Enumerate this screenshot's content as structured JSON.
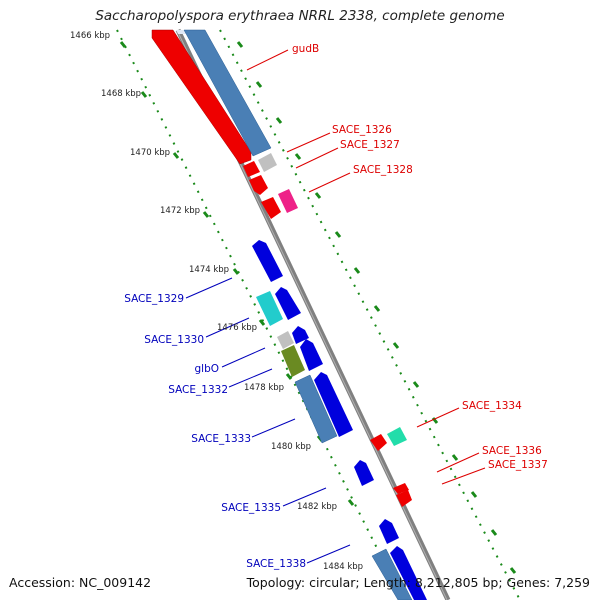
{
  "title": "Saccharopolyspora erythraea NRRL 2338, complete genome",
  "footer": {
    "accession": "Accession: NC_009142",
    "topology": "Topology: circular; Length: 8,212,805 bp; Genes: 7,259"
  },
  "ticks": [
    "1466 kbp",
    "1468 kbp",
    "1470 kbp",
    "1472 kbp",
    "1474 kbp",
    "1476 kbp",
    "1478 kbp",
    "1480 kbp",
    "1482 kbp",
    "1484 kbp"
  ],
  "labels": {
    "forward": [
      "gudB",
      "SACE_1326",
      "SACE_1327",
      "SACE_1328",
      "SACE_1334",
      "SACE_1336",
      "SACE_1337"
    ],
    "reverse": [
      "SACE_1329",
      "SACE_1330",
      "glbO",
      "SACE_1332",
      "SACE_1333",
      "SACE_1335",
      "SACE_1338"
    ]
  },
  "colors": {
    "forward_label": "#dd0000",
    "reverse_label": "#0000bb",
    "backbone": "#808080",
    "tick_dots": "#1a8a1a",
    "red": "#ee0000",
    "blue": "#0000dd",
    "steelblue": "#4a7fb5",
    "gray": "#c0c0c0",
    "magenta": "#ee2288",
    "cyan": "#22cccc",
    "olive": "#6a8a22",
    "mint": "#22ddaa",
    "paleblue": "#e0e8f5"
  }
}
